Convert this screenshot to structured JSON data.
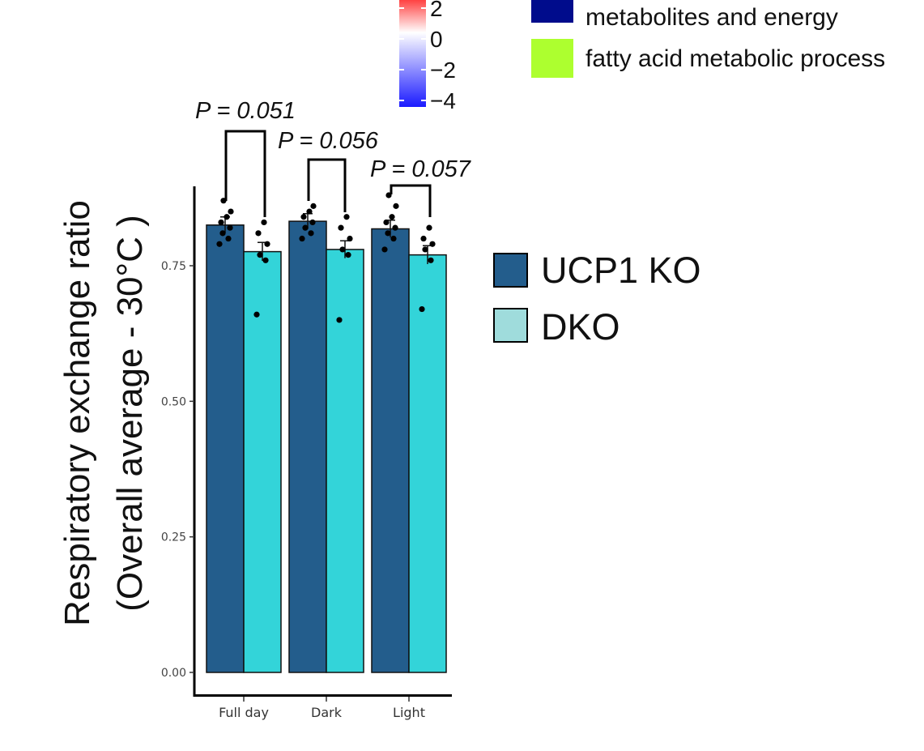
{
  "colorscale": {
    "ticks": [
      "2",
      "0",
      "−2",
      "−4"
    ],
    "colors": {
      "high": "#ff2a2a",
      "mid": "#ffffff",
      "low": "#1a1aff"
    }
  },
  "top_legend": {
    "items": [
      {
        "label": "metabolites and energy",
        "color": "#000c8c"
      },
      {
        "label": "fatty acid metabolic process",
        "color": "#adff2f"
      }
    ]
  },
  "chart_data": {
    "type": "bar",
    "ylabel_line1": "Respiratory exchange ratio",
    "ylabel_line2": "(Overall average - 30°C )",
    "xlabel": "",
    "ylim": [
      0,
      0.9
    ],
    "yticks": [
      0.0,
      0.25,
      0.5,
      0.75
    ],
    "ytick_labels": [
      "0.00",
      "0.25",
      "0.50",
      "0.75"
    ],
    "categories": [
      "Full day",
      "Dark",
      "Light"
    ],
    "series": [
      {
        "name": "UCP1 KO",
        "color": "#235d8c",
        "values": [
          0.825,
          0.832,
          0.818
        ],
        "errors": [
          0.015,
          0.014,
          0.016
        ],
        "points": [
          [
            0.79,
            0.8,
            0.81,
            0.82,
            0.83,
            0.84,
            0.85,
            0.87
          ],
          [
            0.8,
            0.81,
            0.82,
            0.83,
            0.84,
            0.85,
            0.86
          ],
          [
            0.78,
            0.8,
            0.81,
            0.82,
            0.83,
            0.84,
            0.86,
            0.88
          ]
        ]
      },
      {
        "name": "DKO",
        "color": "#33d4d9",
        "values": [
          0.776,
          0.78,
          0.77
        ],
        "errors": [
          0.017,
          0.016,
          0.017
        ],
        "points": [
          [
            0.66,
            0.76,
            0.77,
            0.79,
            0.81,
            0.83
          ],
          [
            0.65,
            0.77,
            0.78,
            0.8,
            0.82,
            0.84
          ],
          [
            0.67,
            0.76,
            0.78,
            0.79,
            0.8,
            0.82
          ]
        ]
      }
    ],
    "legend_swatch_colors": [
      "#235d8c",
      "#9fdcdc"
    ],
    "annotations": [
      "P = 0.051",
      "P = 0.056",
      "P = 0.057"
    ]
  }
}
